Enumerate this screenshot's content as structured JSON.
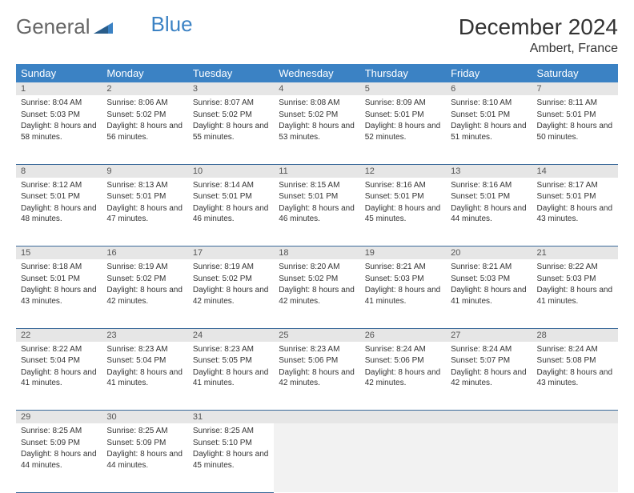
{
  "logo": {
    "word1": "General",
    "word2": "Blue"
  },
  "title": "December 2024",
  "location": "Ambert, France",
  "colors": {
    "header_bg": "#3b82c4",
    "header_text": "#ffffff",
    "daynum_bg": "#e6e6e6",
    "daynum_text": "#555555",
    "cell_border": "#3b6a9a",
    "logo_accent": "#3b82c4",
    "logo_text": "#666666"
  },
  "weekdays": [
    "Sunday",
    "Monday",
    "Tuesday",
    "Wednesday",
    "Thursday",
    "Friday",
    "Saturday"
  ],
  "weeks": [
    [
      {
        "num": "1",
        "sunrise": "Sunrise: 8:04 AM",
        "sunset": "Sunset: 5:03 PM",
        "daylight": "Daylight: 8 hours and 58 minutes."
      },
      {
        "num": "2",
        "sunrise": "Sunrise: 8:06 AM",
        "sunset": "Sunset: 5:02 PM",
        "daylight": "Daylight: 8 hours and 56 minutes."
      },
      {
        "num": "3",
        "sunrise": "Sunrise: 8:07 AM",
        "sunset": "Sunset: 5:02 PM",
        "daylight": "Daylight: 8 hours and 55 minutes."
      },
      {
        "num": "4",
        "sunrise": "Sunrise: 8:08 AM",
        "sunset": "Sunset: 5:02 PM",
        "daylight": "Daylight: 8 hours and 53 minutes."
      },
      {
        "num": "5",
        "sunrise": "Sunrise: 8:09 AM",
        "sunset": "Sunset: 5:01 PM",
        "daylight": "Daylight: 8 hours and 52 minutes."
      },
      {
        "num": "6",
        "sunrise": "Sunrise: 8:10 AM",
        "sunset": "Sunset: 5:01 PM",
        "daylight": "Daylight: 8 hours and 51 minutes."
      },
      {
        "num": "7",
        "sunrise": "Sunrise: 8:11 AM",
        "sunset": "Sunset: 5:01 PM",
        "daylight": "Daylight: 8 hours and 50 minutes."
      }
    ],
    [
      {
        "num": "8",
        "sunrise": "Sunrise: 8:12 AM",
        "sunset": "Sunset: 5:01 PM",
        "daylight": "Daylight: 8 hours and 48 minutes."
      },
      {
        "num": "9",
        "sunrise": "Sunrise: 8:13 AM",
        "sunset": "Sunset: 5:01 PM",
        "daylight": "Daylight: 8 hours and 47 minutes."
      },
      {
        "num": "10",
        "sunrise": "Sunrise: 8:14 AM",
        "sunset": "Sunset: 5:01 PM",
        "daylight": "Daylight: 8 hours and 46 minutes."
      },
      {
        "num": "11",
        "sunrise": "Sunrise: 8:15 AM",
        "sunset": "Sunset: 5:01 PM",
        "daylight": "Daylight: 8 hours and 46 minutes."
      },
      {
        "num": "12",
        "sunrise": "Sunrise: 8:16 AM",
        "sunset": "Sunset: 5:01 PM",
        "daylight": "Daylight: 8 hours and 45 minutes."
      },
      {
        "num": "13",
        "sunrise": "Sunrise: 8:16 AM",
        "sunset": "Sunset: 5:01 PM",
        "daylight": "Daylight: 8 hours and 44 minutes."
      },
      {
        "num": "14",
        "sunrise": "Sunrise: 8:17 AM",
        "sunset": "Sunset: 5:01 PM",
        "daylight": "Daylight: 8 hours and 43 minutes."
      }
    ],
    [
      {
        "num": "15",
        "sunrise": "Sunrise: 8:18 AM",
        "sunset": "Sunset: 5:01 PM",
        "daylight": "Daylight: 8 hours and 43 minutes."
      },
      {
        "num": "16",
        "sunrise": "Sunrise: 8:19 AM",
        "sunset": "Sunset: 5:02 PM",
        "daylight": "Daylight: 8 hours and 42 minutes."
      },
      {
        "num": "17",
        "sunrise": "Sunrise: 8:19 AM",
        "sunset": "Sunset: 5:02 PM",
        "daylight": "Daylight: 8 hours and 42 minutes."
      },
      {
        "num": "18",
        "sunrise": "Sunrise: 8:20 AM",
        "sunset": "Sunset: 5:02 PM",
        "daylight": "Daylight: 8 hours and 42 minutes."
      },
      {
        "num": "19",
        "sunrise": "Sunrise: 8:21 AM",
        "sunset": "Sunset: 5:03 PM",
        "daylight": "Daylight: 8 hours and 41 minutes."
      },
      {
        "num": "20",
        "sunrise": "Sunrise: 8:21 AM",
        "sunset": "Sunset: 5:03 PM",
        "daylight": "Daylight: 8 hours and 41 minutes."
      },
      {
        "num": "21",
        "sunrise": "Sunrise: 8:22 AM",
        "sunset": "Sunset: 5:03 PM",
        "daylight": "Daylight: 8 hours and 41 minutes."
      }
    ],
    [
      {
        "num": "22",
        "sunrise": "Sunrise: 8:22 AM",
        "sunset": "Sunset: 5:04 PM",
        "daylight": "Daylight: 8 hours and 41 minutes."
      },
      {
        "num": "23",
        "sunrise": "Sunrise: 8:23 AM",
        "sunset": "Sunset: 5:04 PM",
        "daylight": "Daylight: 8 hours and 41 minutes."
      },
      {
        "num": "24",
        "sunrise": "Sunrise: 8:23 AM",
        "sunset": "Sunset: 5:05 PM",
        "daylight": "Daylight: 8 hours and 41 minutes."
      },
      {
        "num": "25",
        "sunrise": "Sunrise: 8:23 AM",
        "sunset": "Sunset: 5:06 PM",
        "daylight": "Daylight: 8 hours and 42 minutes."
      },
      {
        "num": "26",
        "sunrise": "Sunrise: 8:24 AM",
        "sunset": "Sunset: 5:06 PM",
        "daylight": "Daylight: 8 hours and 42 minutes."
      },
      {
        "num": "27",
        "sunrise": "Sunrise: 8:24 AM",
        "sunset": "Sunset: 5:07 PM",
        "daylight": "Daylight: 8 hours and 42 minutes."
      },
      {
        "num": "28",
        "sunrise": "Sunrise: 8:24 AM",
        "sunset": "Sunset: 5:08 PM",
        "daylight": "Daylight: 8 hours and 43 minutes."
      }
    ],
    [
      {
        "num": "29",
        "sunrise": "Sunrise: 8:25 AM",
        "sunset": "Sunset: 5:09 PM",
        "daylight": "Daylight: 8 hours and 44 minutes."
      },
      {
        "num": "30",
        "sunrise": "Sunrise: 8:25 AM",
        "sunset": "Sunset: 5:09 PM",
        "daylight": "Daylight: 8 hours and 44 minutes."
      },
      {
        "num": "31",
        "sunrise": "Sunrise: 8:25 AM",
        "sunset": "Sunset: 5:10 PM",
        "daylight": "Daylight: 8 hours and 45 minutes."
      },
      null,
      null,
      null,
      null
    ]
  ]
}
